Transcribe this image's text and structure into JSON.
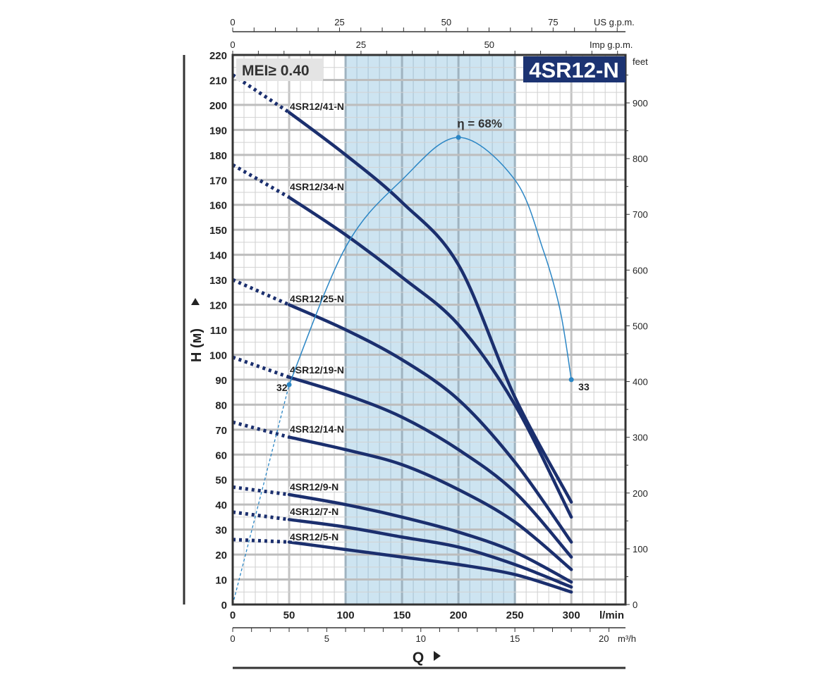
{
  "chart_data": {
    "type": "line",
    "title": "4SR12-N",
    "badge": "MEI≥ 0.40",
    "xlabel": "Q",
    "ylabel": "H (м)",
    "x_unit": "l/min",
    "xlim": [
      0,
      348
    ],
    "ylim": [
      0,
      220
    ],
    "grid": true,
    "x_ticks": [
      0,
      50,
      100,
      150,
      200,
      250,
      300
    ],
    "y_ticks": [
      0,
      10,
      20,
      30,
      40,
      50,
      60,
      70,
      80,
      90,
      100,
      110,
      120,
      130,
      140,
      150,
      160,
      170,
      180,
      190,
      200,
      210,
      220
    ],
    "highlight_range": [
      100,
      250
    ],
    "colors": {
      "curve": "#1b2f6e",
      "efficiency": "#2b86c5",
      "highlight": "#cde4f1",
      "title_bg": "#1c3372",
      "badge_bg": "#e4e4e4"
    },
    "secondary_axes": {
      "us_gpm": {
        "label": "US g.p.m.",
        "ticks": [
          0,
          25,
          50,
          75
        ]
      },
      "imp_gpm": {
        "label": "Imp g.p.m.",
        "ticks": [
          0,
          25,
          50
        ]
      },
      "m3h": {
        "label": "m³/h",
        "ticks": [
          0,
          5,
          10,
          15,
          20
        ]
      },
      "feet": {
        "label": "feet",
        "ticks": [
          0,
          100,
          200,
          300,
          400,
          500,
          600,
          700,
          800,
          900
        ],
        "range": [
          0,
          986
        ]
      }
    },
    "x": [
      0,
      50,
      100,
      150,
      200,
      250,
      300
    ],
    "series": [
      {
        "name": "4SR12/41-N",
        "values": [
          212,
          197,
          180,
          161,
          136,
          83,
          41
        ]
      },
      {
        "name": "4SR12/34-N",
        "values": [
          176,
          163,
          148,
          131,
          112,
          80,
          35
        ]
      },
      {
        "name": "4SR12/25-N",
        "values": [
          130,
          120,
          110,
          98,
          82,
          57,
          25
        ]
      },
      {
        "name": "4SR12/19-N",
        "values": [
          99,
          91,
          84,
          75,
          62,
          45,
          19
        ]
      },
      {
        "name": "4SR12/14-N",
        "values": [
          73,
          67,
          62,
          56,
          46,
          33,
          14
        ]
      },
      {
        "name": "4SR12/9-N",
        "values": [
          47,
          44,
          40,
          35,
          29,
          21,
          9
        ]
      },
      {
        "name": "4SR12/7-N",
        "values": [
          37,
          34,
          31,
          27,
          23,
          16,
          7
        ]
      },
      {
        "name": "4SR12/5-N",
        "values": [
          26,
          25,
          22,
          19,
          16,
          12,
          5
        ]
      }
    ],
    "efficiency": {
      "x": [
        50,
        100,
        150,
        200,
        250,
        275,
        290,
        300
      ],
      "y": [
        88,
        143,
        170,
        187,
        170,
        142,
        118,
        90
      ],
      "peak_label": "η = 68%",
      "start_label": "32",
      "end_label": "33"
    }
  }
}
